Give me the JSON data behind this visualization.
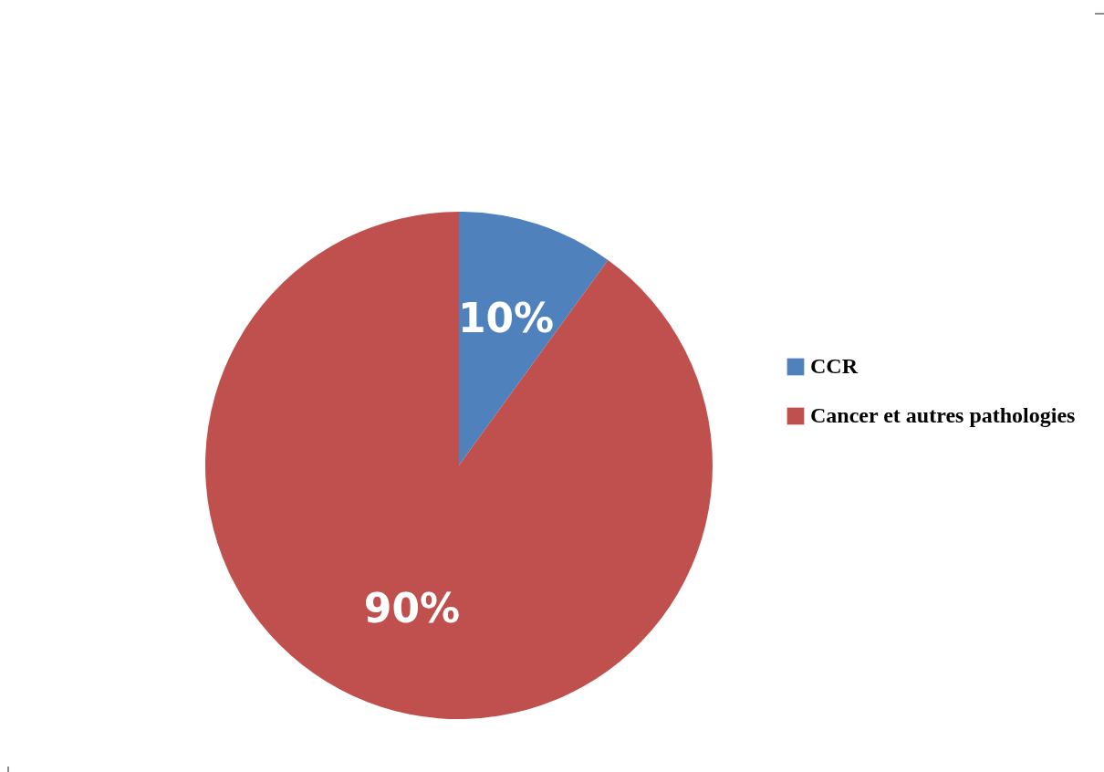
{
  "chart_data": {
    "type": "pie",
    "categories": [
      "CCR",
      "Cancer et autres pathologies"
    ],
    "values": [
      10,
      90
    ],
    "colors": [
      "#4f81bd",
      "#c0504d"
    ],
    "value_labels": [
      "10%",
      "90%"
    ],
    "legend": "right"
  }
}
